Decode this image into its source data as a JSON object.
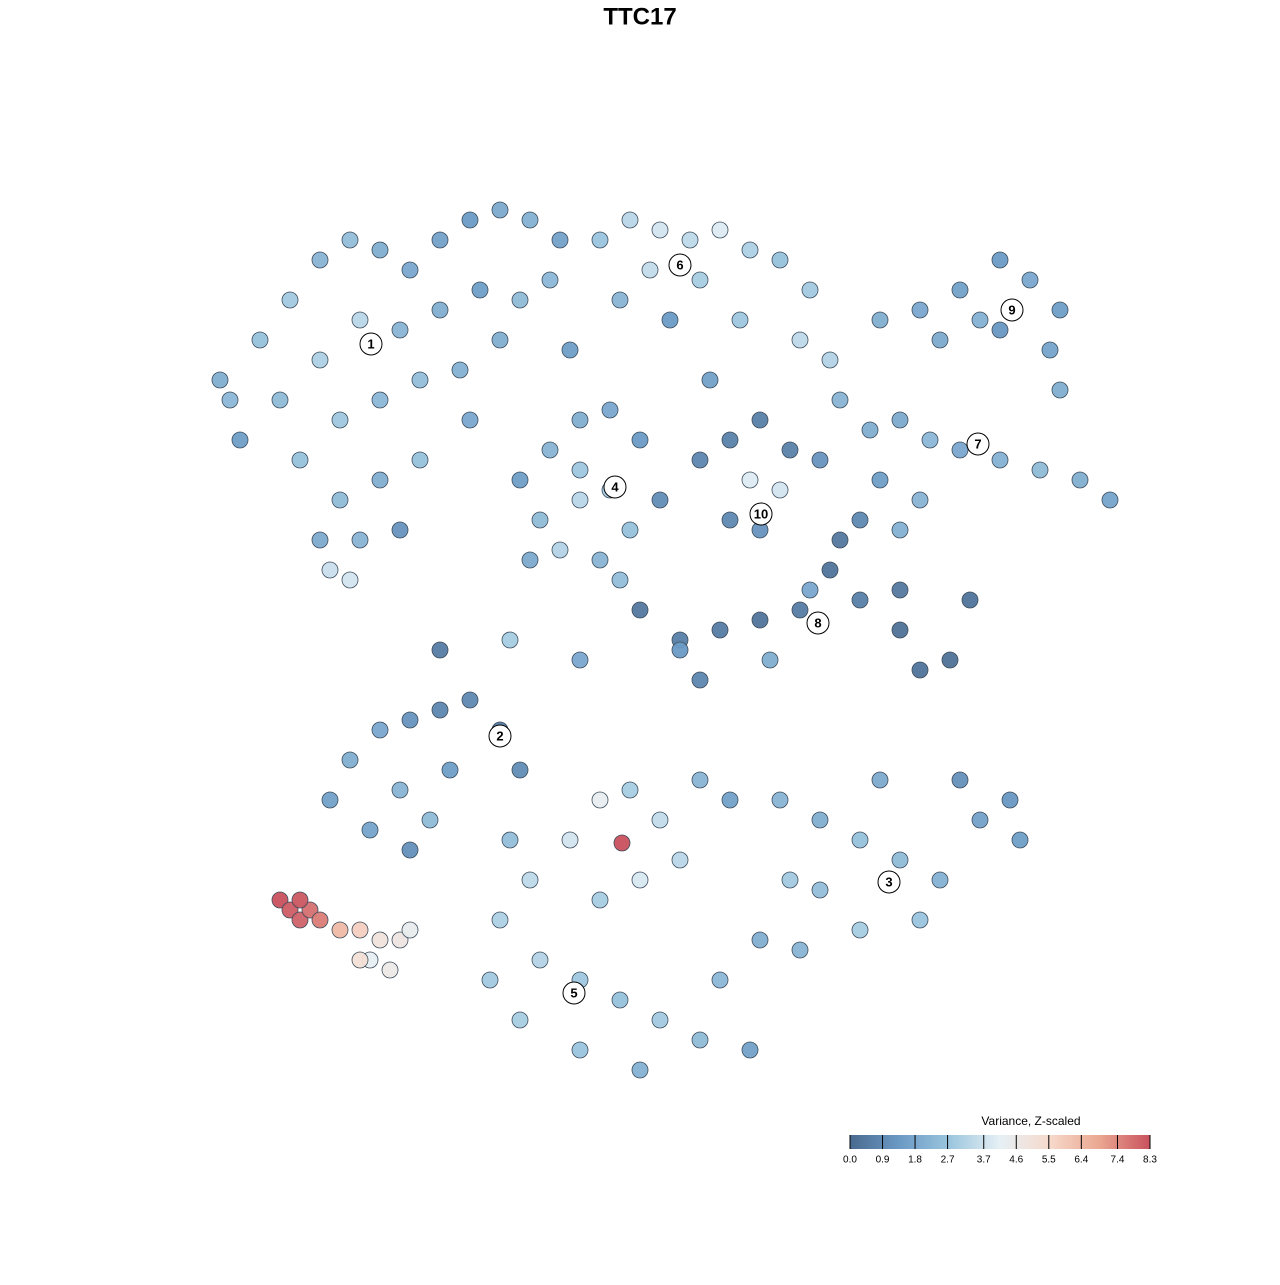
{
  "chart_data": {
    "type": "scatter",
    "title": "TTC17",
    "xlim": [
      0,
      93
    ],
    "ylim": [
      0,
      92
    ],
    "clim": [
      0,
      8.3
    ],
    "colorscale": [
      "#4a6a8f",
      "#6b9ac5",
      "#9cc6de",
      "#e6f0f5",
      "#f7d9cb",
      "#eaa690",
      "#c9515e"
    ],
    "colorbar_title": "Variance, Z-scaled",
    "colorbar_ticks": [
      {
        "value": 0,
        "label": "0.0"
      },
      0.9,
      1.8,
      2.7,
      3.7,
      4.6,
      5.5,
      6.4,
      7.4,
      8.3
    ],
    "x": [
      3,
      6,
      9,
      12,
      15,
      18,
      21,
      24,
      27,
      30,
      33,
      8,
      12,
      16,
      20,
      24,
      28,
      32,
      10,
      14,
      18,
      22,
      26,
      14,
      18,
      22,
      12,
      16,
      20,
      13,
      15,
      4,
      2,
      36,
      35,
      30,
      27,
      40,
      43,
      46,
      49,
      52,
      55,
      58,
      61,
      45,
      50,
      54,
      60,
      63,
      42,
      47,
      51,
      37,
      68,
      72,
      76,
      80,
      83,
      86,
      85,
      78,
      74,
      86,
      80,
      64,
      67,
      70,
      73,
      76,
      80,
      84,
      88,
      91,
      68,
      72,
      62,
      70,
      66,
      32,
      35,
      38,
      41,
      44,
      46,
      34,
      38,
      41,
      43,
      36,
      40,
      33,
      42,
      38,
      50,
      53,
      56,
      59,
      58,
      55,
      56,
      53,
      48,
      52,
      56,
      60,
      63,
      64,
      66,
      70,
      72,
      75,
      77,
      70,
      57,
      50,
      61,
      13,
      15,
      18,
      21,
      24,
      27,
      30,
      32,
      20,
      17,
      21,
      25,
      23,
      58,
      62,
      66,
      70,
      74,
      78,
      81,
      82,
      76,
      72,
      66,
      60,
      62,
      68,
      59,
      30,
      33,
      37,
      40,
      43,
      46,
      50,
      53,
      48,
      44,
      40,
      34,
      38,
      42,
      46,
      50,
      44,
      38,
      32,
      29,
      55,
      52,
      56,
      31,
      8,
      9,
      10,
      11,
      10,
      12,
      14,
      16,
      18,
      17,
      20,
      16,
      19,
      21,
      42.2,
      24,
      31,
      48,
      38,
      44
    ],
    "y": [
      70,
      76,
      80,
      84,
      86,
      85,
      83,
      86,
      88,
      89,
      88,
      70,
      74,
      78,
      77,
      79,
      81,
      80,
      64,
      68,
      70,
      72,
      73,
      60,
      62,
      64,
      56,
      56,
      57,
      53,
      52,
      66,
      72,
      86,
      82,
      76,
      68,
      86,
      88,
      87,
      86,
      87,
      85,
      84,
      81,
      83,
      82,
      78,
      76,
      74,
      80,
      78,
      72,
      75,
      78,
      79,
      81,
      84,
      82,
      79,
      75,
      78,
      76,
      71,
      77,
      70,
      67,
      68,
      66,
      65,
      64,
      63,
      62,
      60,
      62,
      60,
      64,
      57,
      58,
      62,
      65,
      68,
      69,
      66,
      60,
      58,
      60,
      61,
      57,
      55,
      54,
      54,
      52,
      63,
      64,
      66,
      68,
      65,
      61,
      62,
      57,
      58,
      46,
      47,
      48,
      49,
      53,
      56,
      50,
      47,
      43,
      44,
      50,
      51,
      44,
      42,
      51,
      30,
      34,
      37,
      38,
      39,
      40,
      37,
      33,
      31,
      27,
      25,
      33,
      28,
      30,
      28,
      26,
      24,
      22,
      28,
      30,
      26,
      32,
      18,
      17,
      15,
      21,
      32,
      22,
      18,
      22,
      26,
      30,
      31,
      28,
      32,
      30,
      24,
      22,
      20,
      14,
      12,
      10,
      8,
      6,
      3,
      5,
      8,
      12,
      5,
      12,
      16,
      26,
      20,
      19,
      18,
      19,
      20,
      18,
      17,
      17,
      16,
      14,
      16,
      14,
      13,
      17,
      25.7,
      45,
      46,
      45,
      44,
      49
    ],
    "values": [
      2.3,
      2.6,
      2.9,
      2.2,
      2.5,
      2.0,
      1.8,
      1.6,
      1.4,
      1.9,
      2.1,
      2.4,
      3.1,
      3.3,
      2.2,
      2.0,
      1.5,
      2.4,
      2.6,
      2.8,
      2.3,
      2.5,
      2.1,
      2.4,
      2.0,
      2.6,
      1.9,
      2.2,
      1.2,
      3.6,
      3.8,
      1.5,
      2.0,
      1.6,
      2.3,
      2.0,
      1.8,
      2.7,
      3.3,
      3.8,
      3.4,
      4.0,
      3.1,
      2.6,
      2.9,
      3.5,
      3.0,
      2.8,
      3.4,
      3.2,
      2.2,
      1.4,
      1.6,
      1.5,
      2.0,
      1.8,
      1.6,
      1.4,
      1.8,
      1.5,
      1.7,
      2.1,
      1.9,
      2.0,
      1.3,
      2.2,
      2.0,
      1.9,
      2.3,
      1.8,
      2.1,
      2.4,
      2.0,
      1.7,
      1.5,
      2.2,
      1.2,
      2.1,
      0.9,
      1.5,
      2.2,
      2.0,
      1.8,
      1.4,
      1.0,
      2.4,
      3.3,
      3.0,
      2.6,
      3.2,
      2.2,
      1.9,
      2.5,
      2.8,
      0.8,
      0.7,
      0.6,
      0.7,
      3.8,
      4.0,
      1.2,
      0.9,
      0.6,
      0.5,
      0.3,
      0.5,
      0.3,
      0.4,
      0.6,
      0.2,
      0.3,
      0.2,
      0.3,
      0.4,
      2.0,
      0.8,
      1.8,
      1.6,
      2.0,
      1.8,
      1.2,
      0.8,
      0.9,
      0.5,
      1.0,
      2.2,
      1.7,
      1.1,
      1.5,
      2.4,
      2.2,
      2.0,
      2.6,
      2.4,
      2.1,
      1.6,
      1.3,
      1.5,
      1.1,
      2.7,
      3.0,
      2.2,
      2.5,
      1.9,
      2.9,
      3.1,
      3.4,
      3.8,
      4.3,
      3.0,
      3.5,
      2.2,
      1.6,
      3.3,
      3.9,
      3.0,
      3.2,
      2.8,
      2.6,
      2.9,
      2.4,
      2.1,
      2.7,
      3.0,
      2.9,
      1.6,
      2.3,
      2.0,
      2.5,
      8.3,
      8.1,
      8.0,
      7.8,
      8.2,
      7.6,
      6.4,
      5.8,
      5.0,
      4.2,
      4.8,
      5.2,
      4.6,
      4.4,
      8.3,
      0.5,
      3.0,
      1.4,
      1.8,
      0.4
    ],
    "cluster_labels": [
      {
        "label": "1",
        "x": 17.1,
        "y": 75.6
      },
      {
        "label": "2",
        "x": 30,
        "y": 36.4
      },
      {
        "label": "3",
        "x": 68.9,
        "y": 21.8
      },
      {
        "label": "4",
        "x": 41.5,
        "y": 61.3
      },
      {
        "label": "5",
        "x": 37.4,
        "y": 10.7
      },
      {
        "label": "6",
        "x": 48,
        "y": 83.5
      },
      {
        "label": "7",
        "x": 77.8,
        "y": 65.6
      },
      {
        "label": "8",
        "x": 61.8,
        "y": 47.7
      },
      {
        "label": "9",
        "x": 81.2,
        "y": 79
      },
      {
        "label": "10",
        "x": 56.1,
        "y": 58.6
      }
    ]
  }
}
